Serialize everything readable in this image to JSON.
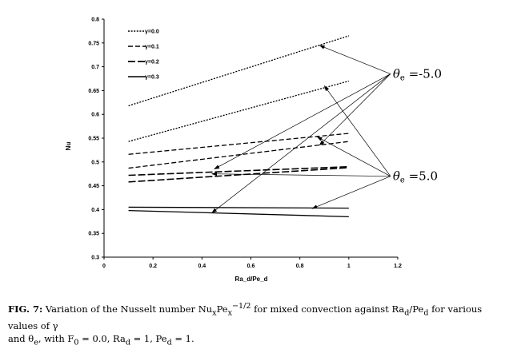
{
  "chart_data": {
    "type": "line",
    "xlabel": "Ra_d/Pe_d",
    "ylabel": "Nu",
    "xlim": [
      0,
      1.2
    ],
    "ylim": [
      0.3,
      0.8
    ],
    "x_ticks": [
      "0",
      "0.2",
      "0.4",
      "0.6",
      "0.8",
      "1",
      "1.2"
    ],
    "y_ticks": [
      "0.3",
      "0.35",
      "0.4",
      "0.45",
      "0.5",
      "0.55",
      "0.6",
      "0.65",
      "0.7",
      "0.75",
      "0.8"
    ],
    "grid": false,
    "legend_position": "top-left",
    "legend": [
      {
        "label": "γ=0.0",
        "style": "dotted"
      },
      {
        "label": "γ=0.1",
        "style": "dashed"
      },
      {
        "label": "γ=0.2",
        "style": "longdash"
      },
      {
        "label": "γ=0.3",
        "style": "solid"
      }
    ],
    "series": [
      {
        "gamma_index": 0,
        "theta_e": "-5.0",
        "x": [
          0.1,
          1.0
        ],
        "y": [
          0.618,
          0.765
        ]
      },
      {
        "gamma_index": 0,
        "theta_e": "5.0",
        "x": [
          0.1,
          1.0
        ],
        "y": [
          0.543,
          0.67
        ]
      },
      {
        "gamma_index": 1,
        "theta_e": "-5.0",
        "x": [
          0.1,
          1.0
        ],
        "y": [
          0.516,
          0.56
        ]
      },
      {
        "gamma_index": 1,
        "theta_e": "5.0",
        "x": [
          0.1,
          1.0
        ],
        "y": [
          0.487,
          0.543
        ]
      },
      {
        "gamma_index": 2,
        "theta_e": "-5.0",
        "x": [
          0.1,
          1.0
        ],
        "y": [
          0.472,
          0.49
        ]
      },
      {
        "gamma_index": 2,
        "theta_e": "5.0",
        "x": [
          0.1,
          1.0
        ],
        "y": [
          0.458,
          0.488
        ]
      },
      {
        "gamma_index": 3,
        "theta_e": "-5.0",
        "x": [
          0.1,
          1.0
        ],
        "y": [
          0.405,
          0.403
        ]
      },
      {
        "gamma_index": 3,
        "theta_e": "5.0",
        "x": [
          0.1,
          1.0
        ],
        "y": [
          0.398,
          0.385
        ]
      }
    ],
    "annotations": [
      {
        "label_prefix": "θ",
        "label_sub": "e",
        "label_suffix": " =-5.0",
        "anchor": [
          1.18,
          0.685
        ],
        "targets": [
          [
            0.88,
            0.745
          ],
          [
            0.45,
            0.485
          ],
          [
            0.88,
            0.535
          ],
          [
            0.44,
            0.393
          ]
        ]
      },
      {
        "label_prefix": "θ",
        "label_sub": "e",
        "label_suffix": " =5.0",
        "anchor": [
          1.18,
          0.47
        ],
        "targets": [
          [
            0.9,
            0.66
          ],
          [
            0.87,
            0.553
          ],
          [
            0.44,
            0.475
          ],
          [
            0.85,
            0.402
          ]
        ]
      }
    ]
  },
  "caption": {
    "label": "FIG. 7:",
    "text_1": " Variation of the Nusselt number Nu",
    "sub_x": "x",
    "text_2": "Pe",
    "sub_x2": "x",
    "sup_exp": "−1/2",
    "text_3": " for mixed convection against Ra",
    "sub_d1": "d",
    "text_4": "/Pe",
    "sub_d2": "d",
    "text_5": " for various values of γ",
    "text_6": "and θ",
    "sub_e": "e",
    "text_7": ", with F",
    "sub_0": "0",
    "text_8": " = 0.0, Ra",
    "sub_d3": "d",
    "text_9": " = 1, Pe",
    "sub_d4": "d",
    "text_10": " = 1."
  }
}
